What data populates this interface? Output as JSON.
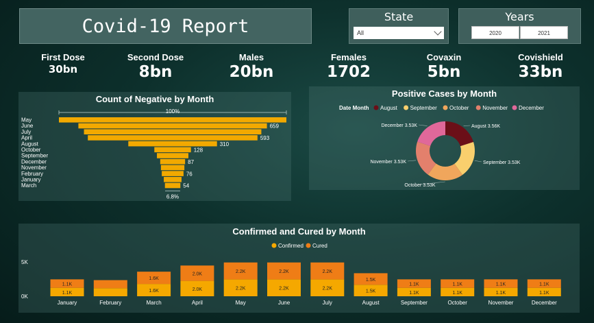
{
  "title": "Covid-19 Report",
  "slicers": {
    "state": {
      "label": "State",
      "selected": "All"
    },
    "years": {
      "label": "Years",
      "options": [
        "2020",
        "2021"
      ]
    }
  },
  "kpis": [
    {
      "label": "First Dose",
      "value": "30bn"
    },
    {
      "label": "Second Dose",
      "value": "8bn"
    },
    {
      "label": "Males",
      "value": "20bn"
    },
    {
      "label": "Females",
      "value": "1702"
    },
    {
      "label": "Covaxin",
      "value": "5bn"
    },
    {
      "label": "Covishield",
      "value": "33bn"
    }
  ],
  "icons": {
    "state_dropdown": "chevron-down-icon"
  },
  "colors": {
    "amber": "#f2a900",
    "confirmed": "#f5a800",
    "cured": "#ef7d16"
  },
  "chart_data": [
    {
      "type": "bar",
      "subtype": "funnel",
      "title": "Count of Negative by Month",
      "categories": [
        "May",
        "June",
        "July",
        "April",
        "August",
        "October",
        "September",
        "December",
        "November",
        "February",
        "January",
        "March"
      ],
      "values": [
        795,
        659,
        620,
        593,
        310,
        128,
        110,
        87,
        82,
        76,
        62,
        54
      ],
      "data_labels": [
        "",
        "659",
        "",
        "593",
        "310",
        "128",
        "",
        "87",
        "",
        "76",
        "",
        "54"
      ],
      "top_label": "100%",
      "bottom_label": "6.8%",
      "color": "#f2a900"
    },
    {
      "type": "pie",
      "subtype": "donut",
      "title": "Positive Cases by Month",
      "legend_title": "Date Month",
      "legend_position": "top",
      "slices": [
        {
          "name": "August",
          "value": 3.56,
          "label": "August 3.56K",
          "color": "#6b0f18"
        },
        {
          "name": "September",
          "value": 3.53,
          "label": "September 3.53K",
          "color": "#f9cf6d"
        },
        {
          "name": "October",
          "value": 3.53,
          "label": "October 3.53K",
          "color": "#f0a65c"
        },
        {
          "name": "November",
          "value": 3.53,
          "label": "November 3.53K",
          "color": "#e3806c"
        },
        {
          "name": "December",
          "value": 3.53,
          "label": "December 3.53K",
          "color": "#e0689a"
        }
      ]
    },
    {
      "type": "bar",
      "subtype": "stacked",
      "title": "Confirmed and Cured by Month",
      "legend_position": "top",
      "categories": [
        "January",
        "February",
        "March",
        "April",
        "May",
        "June",
        "July",
        "August",
        "September",
        "October",
        "November",
        "December"
      ],
      "series": [
        {
          "name": "Confirmed",
          "color": "#f5a800",
          "values": [
            1100,
            1050,
            1600,
            2000,
            2200,
            2200,
            2200,
            1500,
            1100,
            1100,
            1100,
            1100
          ],
          "labels": [
            "1.1K",
            "",
            "1.6K",
            "2.0K",
            "2.2K",
            "2.2K",
            "2.2K",
            "1.5K",
            "1.1K",
            "1.1K",
            "1.1K",
            "1.1K"
          ]
        },
        {
          "name": "Cured",
          "color": "#ef7d16",
          "values": [
            1100,
            1050,
            1600,
            2000,
            2200,
            2200,
            2200,
            1500,
            1100,
            1100,
            1100,
            1100
          ],
          "labels": [
            "1.1K",
            "",
            "1.6K",
            "2.0K",
            "2.2K",
            "2.2K",
            "2.2K",
            "1.5K",
            "1.1K",
            "1.1K",
            "1.1K",
            "1.1K"
          ]
        }
      ],
      "yticks": [
        "0K",
        "5K"
      ],
      "ylim": [
        0,
        5000
      ]
    }
  ]
}
